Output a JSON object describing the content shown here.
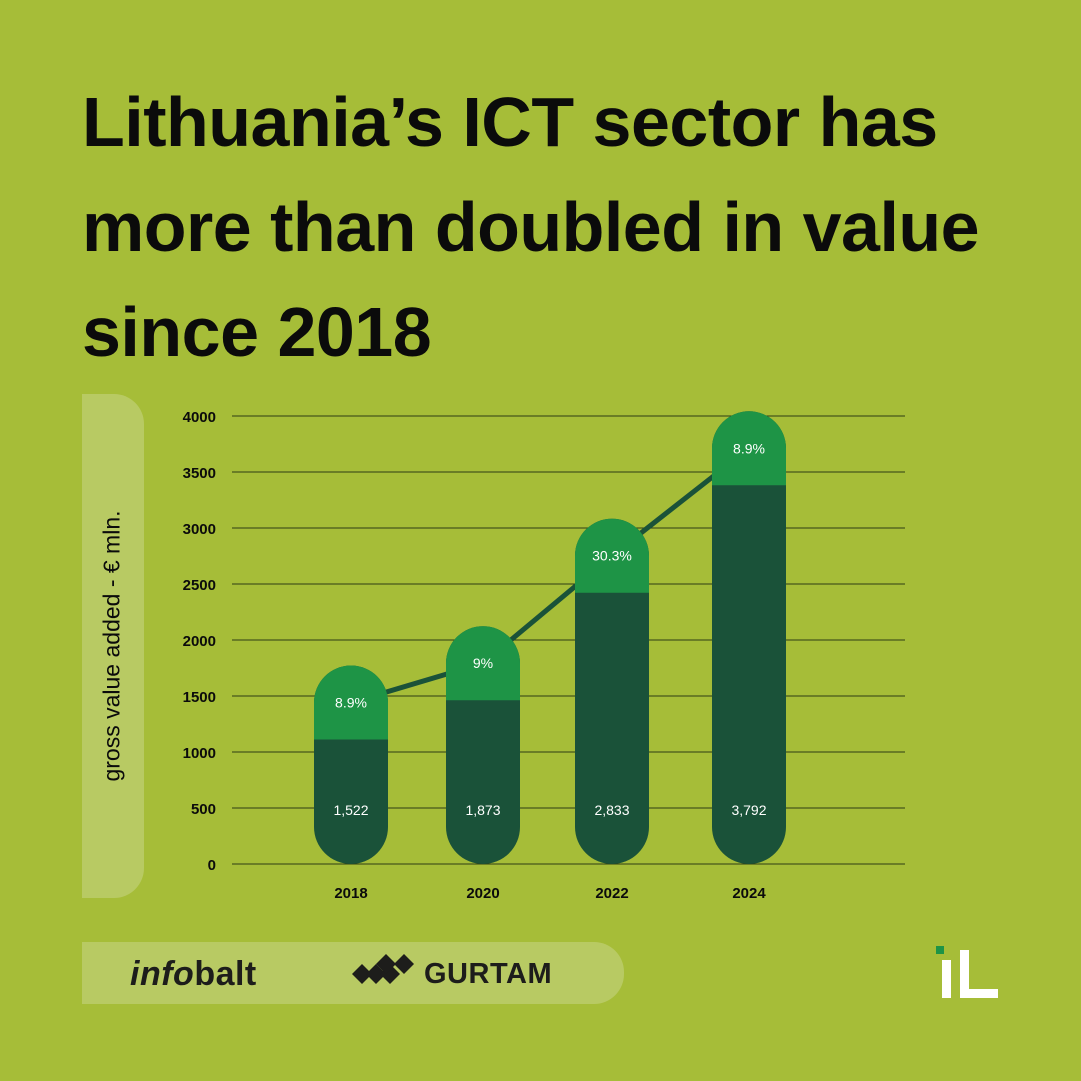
{
  "title": "Lithuania’s ICT sector has more than doubled in value since 2018",
  "chart_data": {
    "type": "bar",
    "ylabel": "gross value added - € mln.",
    "ylim": [
      0,
      4000
    ],
    "yticks": [
      "0",
      "500",
      "1000",
      "1500",
      "2000",
      "2500",
      "3000",
      "3500",
      "4000"
    ],
    "categories": [
      "2018",
      "2020",
      "2022",
      "2024"
    ],
    "values": [
      1522,
      1873,
      2833,
      3792
    ],
    "value_labels": [
      "1,522",
      "1,873",
      "2,833",
      "3,792"
    ],
    "growth_labels": [
      "8.9%",
      "9%",
      "30.3%",
      "8.9%"
    ],
    "grid": true,
    "colors": {
      "bar": "#1a5239",
      "cap": "#1e9446",
      "line": "#1a5239",
      "grid": "#2f3d14",
      "background": "#a6bd38"
    }
  },
  "footer": {
    "infobalt_info": "info",
    "infobalt_balt": "balt",
    "gurtam": "GURTAM",
    "il_logo": "iL"
  }
}
